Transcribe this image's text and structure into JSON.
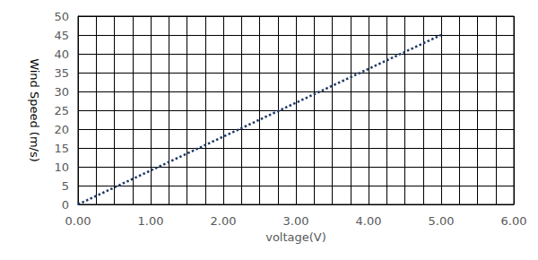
{
  "chart_data": {
    "type": "line",
    "x_label": "voltage(V)",
    "y_label": "Wind Speed (m/s)",
    "x": [
      0,
      5
    ],
    "values": [
      0,
      45
    ],
    "color": "#1f3864",
    "line_style": "dotted",
    "xlim": [
      0,
      6
    ],
    "xticks": [
      {
        "value": 0,
        "label": "0.00"
      },
      {
        "value": 1,
        "label": "1.00"
      },
      {
        "value": 2,
        "label": "2.00"
      },
      {
        "value": 3,
        "label": "3.00"
      },
      {
        "value": 4,
        "label": "4.00"
      },
      {
        "value": 5,
        "label": "5.00"
      },
      {
        "value": 6,
        "label": "6.00"
      }
    ],
    "ylim": [
      0,
      50
    ],
    "yticks": [
      0,
      5,
      10,
      15,
      20,
      25,
      30,
      35,
      40,
      45,
      50
    ],
    "grid": true
  }
}
